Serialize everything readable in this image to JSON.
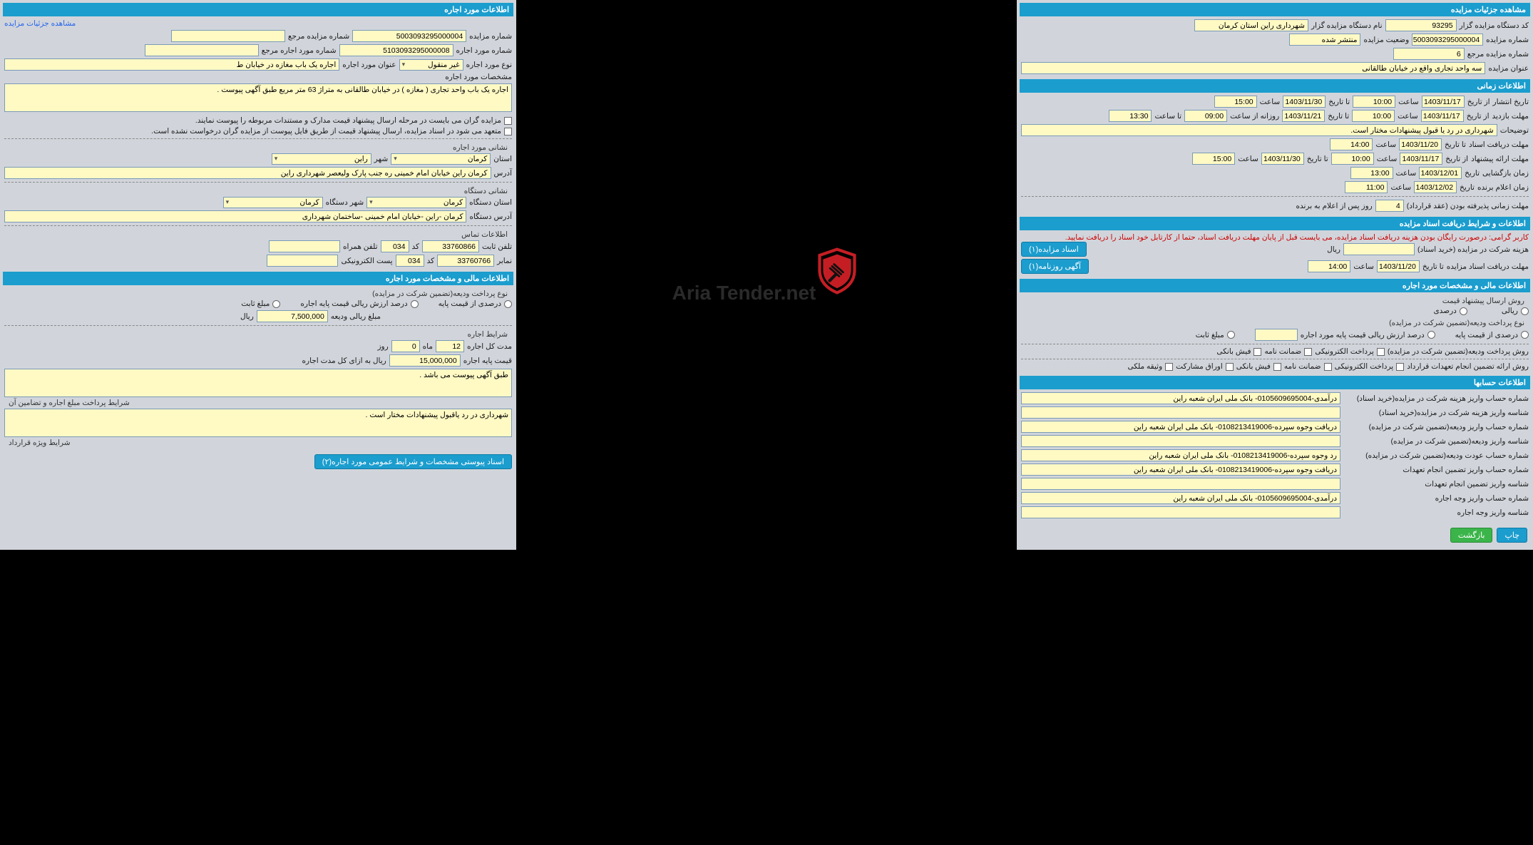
{
  "right": {
    "h1": "مشاهده جزئیات مزایده",
    "r1": [
      {
        "l": "کد دستگاه مزایده گزار",
        "v": "93295"
      },
      {
        "l": "نام دستگاه مزایده گزار",
        "v": "شهرداری راین استان کرمان"
      }
    ],
    "r2": [
      {
        "l": "شماره مزایده",
        "v": "5003093295000004"
      },
      {
        "l": "وضعیت مزایده",
        "v": "منتشر شده"
      }
    ],
    "r3": {
      "l": "شماره مزایده مرجع",
      "v": "6"
    },
    "r4": {
      "l": "عنوان مزایده",
      "v": "سه واحد تجاری واقع در خیابان طالقانی"
    },
    "h2": "اطلاعات زمانی",
    "t1": {
      "l": "تاریخ انتشار",
      "fl": "از تاریخ",
      "fv": "1403/11/17",
      "sl": "ساعت",
      "sv": "10:00",
      "tl": "تا تاریخ",
      "tv": "1403/11/30",
      "s2l": "ساعت",
      "s2v": "15:00"
    },
    "t2": {
      "l": "مهلت بازدید",
      "fl": "از تاریخ",
      "fv": "1403/11/17",
      "sl": "ساعت",
      "sv": "10:00",
      "tl": "تا تاریخ",
      "tv": "1403/11/21",
      "rl": "روزانه از ساعت",
      "rv": "09:00",
      "s2l": "تا ساعت",
      "s2v": "13:30"
    },
    "t2note": {
      "l": "توضیحات",
      "v": "شهرداری در رد یا قبول پیشنهادات مختار است."
    },
    "t3": {
      "l": "مهلت دریافت اسناد",
      "tl": "تا تاریخ",
      "tv": "1403/11/20",
      "sl": "ساعت",
      "sv": "14:00"
    },
    "t4": {
      "l": "مهلت ارائه پیشنهاد",
      "fl": "از تاریخ",
      "fv": "1403/11/17",
      "sl": "ساعت",
      "sv": "10:00",
      "tl": "تا تاریخ",
      "tv": "1403/11/30",
      "s2l": "ساعت",
      "s2v": "15:00"
    },
    "t5": {
      "l": "زمان بازگشایی",
      "dl": "تاریخ",
      "dv": "1403/12/01",
      "sl": "ساعت",
      "sv": "13:00"
    },
    "t6": {
      "l": "زمان اعلام برنده",
      "dl": "تاریخ",
      "dv": "1403/12/02",
      "sl": "ساعت",
      "sv": "11:00"
    },
    "deadline": {
      "l": "مهلت زمانی پذیرفته بودن (عقد قرارداد)",
      "v": "4",
      "suf": "روز پس از اعلام به برنده"
    },
    "h3": "اطلاعات و شرایط دریافت اسناد مزایده",
    "warn": "کاربر گرامی: درصورت رایگان بودن هزینه دریافت اسناد مزایده، می بایست قبل از پایان مهلت دریافت اسناد، حتما از کارتابل خود اسناد را دریافت نمایید.",
    "cost": {
      "l": "هزینه شرکت در مزایده (خرید اسناد)",
      "v": "",
      "suf": "ریال",
      "btn": "اسناد مزایده(۱)"
    },
    "docrec": {
      "l": "مهلت دریافت اسناد مزایده",
      "tl": "تا تاریخ",
      "tv": "1403/11/20",
      "sl": "ساعت",
      "sv": "14:00",
      "btn": "آگهی روزنامه(۱)"
    },
    "h4": "اطلاعات مالی و مشخصات مورد اجاره",
    "method": "روش ارسال پیشنهاد قیمت",
    "opt_rial": "ریالی",
    "opt_pct": "درصدی",
    "dep": "نوع پرداخت ودیعه(تضمین شرکت در مزایده)",
    "opt_pctbase": "درصدی از قیمت پایه",
    "opt_valbase": "درصد ارزش ریالی قیمت پایه مورد اجاره",
    "opt_fix": "مبلغ ثابت",
    "paymethod": "روش پرداخت ودیعه(تضمین شرکت در مزایده)",
    "pm_opts": [
      "پرداخت الکترونیکی",
      "ضمانت نامه",
      "فیش بانکی"
    ],
    "guarantee": "روش ارائه تضمین انجام تعهدات قرارداد",
    "g_opts": [
      "پرداخت الکترونیکی",
      "ضمانت نامه",
      "فیش بانکی",
      "اوراق مشارکت",
      "وثیقه ملکی"
    ],
    "h5": "اطلاعات حسابها",
    "acc": [
      {
        "l": "شماره حساب واریز هزینه شرکت در مزایده(خرید اسناد)",
        "v": "درآمدی-0105609695004- بانک ملی ایران شعبه راین"
      },
      {
        "l": "شناسه واریز هزینه شرکت در مزایده(خرید اسناد)",
        "v": ""
      },
      {
        "l": "شماره حساب واریز ودیعه(تضمین شرکت در مزایده)",
        "v": "دریافت وجوه سپرده-0108213419006- بانک ملی ایران شعبه راین"
      },
      {
        "l": "شناسه واریز ودیعه(تضمین شرکت در مزایده)",
        "v": ""
      },
      {
        "l": "شماره حساب عودت ودیعه(تضمین شرکت در مزایده)",
        "v": "رد وجوه سپرده-0108213419006- بانک ملی ایران شعبه راین"
      },
      {
        "l": "شماره حساب واریز تضمین انجام تعهدات",
        "v": "دریافت وجوه سپرده-0108213419006- بانک ملی ایران شعبه راین"
      },
      {
        "l": "شناسه واریز تضمین انجام تعهدات",
        "v": ""
      },
      {
        "l": "شماره حساب واریز وجه اجاره",
        "v": "درآمدی-0105609695004- بانک ملی ایران شعبه راین"
      },
      {
        "l": "شناسه واریز وجه اجاره",
        "v": ""
      }
    ],
    "btn_print": "چاپ",
    "btn_back": "بازگشت"
  },
  "left": {
    "h1": "اطلاعات مورد اجاره",
    "link": "مشاهده جزئیات مزایده",
    "r1": [
      {
        "l": "شماره مزایده",
        "v": "5003093295000004"
      },
      {
        "l": "شماره مزایده مرجع",
        "v": ""
      }
    ],
    "r2": [
      {
        "l": "شماره مورد اجاره",
        "v": "5103093295000008"
      },
      {
        "l": "شماره مورد اجاره مرجع",
        "v": ""
      }
    ],
    "r3": [
      {
        "l": "نوع مورد اجاره",
        "v": "غیر منقول"
      },
      {
        "l": "عنوان مورد اجاره",
        "v": "اجاره یک باب مغازه در خیابان ط"
      }
    ],
    "r4": {
      "l": "مشخصات مورد اجاره",
      "v": "اجاره یک باب واحد تجاری ( مغازه ) در خیابان طالقانی به متراژ 63 متر مربع طبق آگهی پیوست ."
    },
    "n1": "مزایده گران می بایست در مرحله ارسال پیشنهاد قیمت مدارک و مستندات مربوطه را پیوست نمایند.",
    "n2": "متعهد می شود در اسناد مزایده، ارسال پیشنهاد قیمت از طریق فایل پیوست از مزایده گران درخواست نشده است.",
    "sub1": "نشانی مورد اجاره",
    "addr": [
      {
        "l": "استان",
        "v": "کرمان"
      },
      {
        "l": "شهر",
        "v": "راین"
      },
      {
        "l": "آدرس",
        "v": "کرمان راین خیابان امام خمینی ره جنب پارک ولیعصر شهرداری راین"
      }
    ],
    "sub2": "نشانی دستگاه",
    "org": [
      {
        "l": "استان دستگاه",
        "v": "کرمان"
      },
      {
        "l": "شهر دستگاه",
        "v": "کرمان"
      },
      {
        "l": "آدرس دستگاه",
        "v": "کرمان -راین -خیابان امام خمینی  -ساختمان شهرداری"
      }
    ],
    "sub3": "اطلاعات تماس",
    "tel": [
      {
        "l": "تلفن ثابت",
        "v": "33760866",
        "c": "کد",
        "cv": "034"
      },
      {
        "l": "تلفن همراه",
        "v": ""
      },
      {
        "l": "نمابر",
        "v": "33760766",
        "c": "کد",
        "cv": "034"
      },
      {
        "l": "پست الکترونیکی",
        "v": ""
      }
    ],
    "h2": "اطلاعات مالی و مشخصات مورد اجاره",
    "dep": "نوع پرداخت ودیعه(تضمین شرکت در مزایده)",
    "opts": [
      "درصدی از قیمت پایه",
      "درصد ارزش ریالی قیمت پایه اجاره",
      "مبلغ ثابت"
    ],
    "depval": {
      "l": "مبلغ ریالی ودیعه",
      "v": "7,500,000",
      "suf": "ریال"
    },
    "sub4": "شرایط اجاره",
    "dur": {
      "l": "مدت کل اجاره",
      "mv": "12",
      "ml": "ماه",
      "dv": "0",
      "dl": "روز"
    },
    "base": {
      "l": "قیمت پایه اجاره",
      "v": "15,000,000",
      "suf": "ریال به ازای کل مدت اجاره"
    },
    "box1": "طبق آگهی پیوست می باشد .",
    "box1l": "شرایط پرداخت مبلغ اجاره و تضامین آن",
    "box2": "شهرداری در رد یاقبول پیشنهادات مختار است .",
    "box2l": "شرایط ویژه قرارداد",
    "btn": "اسناد پیوستی مشخصات و شرایط عمومی مورد اجاره(۲)"
  },
  "logotxt": "Aria Tender.net"
}
